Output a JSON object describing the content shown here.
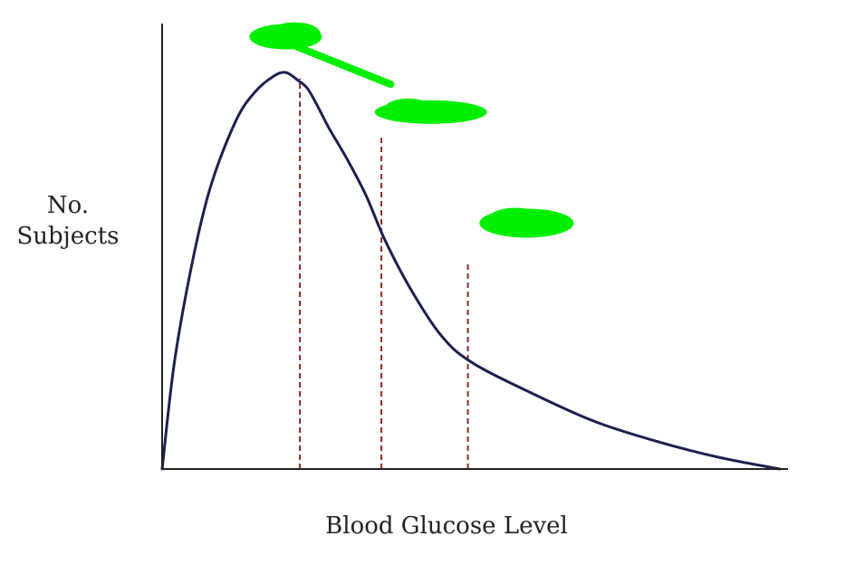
{
  "chart_data": {
    "type": "line",
    "title": "",
    "xlabel": "Blood Glucose Level",
    "ylabel_lines": [
      "No.",
      "Subjects"
    ],
    "ylabel": "No. Subjects",
    "xlim": [
      0,
      100
    ],
    "ylim": [
      0,
      100
    ],
    "grid": false,
    "legend": "none",
    "show_ticks": false,
    "series": [
      {
        "x": [
          0,
          2,
          5,
          8,
          12,
          15,
          18,
          20,
          22,
          23.5,
          25,
          27,
          30,
          33,
          36,
          40,
          45,
          50,
          60,
          70,
          80,
          90,
          100
        ],
        "values": [
          0,
          27,
          53,
          72,
          88,
          95,
          99,
          100,
          98,
          96,
          92,
          86,
          78,
          69,
          58,
          46,
          34,
          27,
          19,
          12,
          7,
          3,
          0
        ],
        "color": "#1f1f4f"
      }
    ],
    "reference_lines": [
      {
        "x": 22.3,
        "y": 98.5,
        "color": "#8b2a2a",
        "style": "dashed"
      },
      {
        "x": 35.5,
        "y": 83.5,
        "color": "#8b2a2a",
        "style": "dashed"
      },
      {
        "x": 49.5,
        "y": 52,
        "color": "#8b2a2a",
        "style": "dashed"
      }
    ],
    "redactions": [
      {
        "x": 20,
        "y": 109,
        "color": "#00ee00"
      },
      {
        "x": 43.5,
        "y": 90,
        "color": "#00ee00"
      },
      {
        "x": 59,
        "y": 62,
        "color": "#00ee00"
      }
    ],
    "colors": {
      "axis": "#222222",
      "curve": "#1f1f4f",
      "reference": "#8b2a2a",
      "redaction": "#00ee00"
    }
  }
}
